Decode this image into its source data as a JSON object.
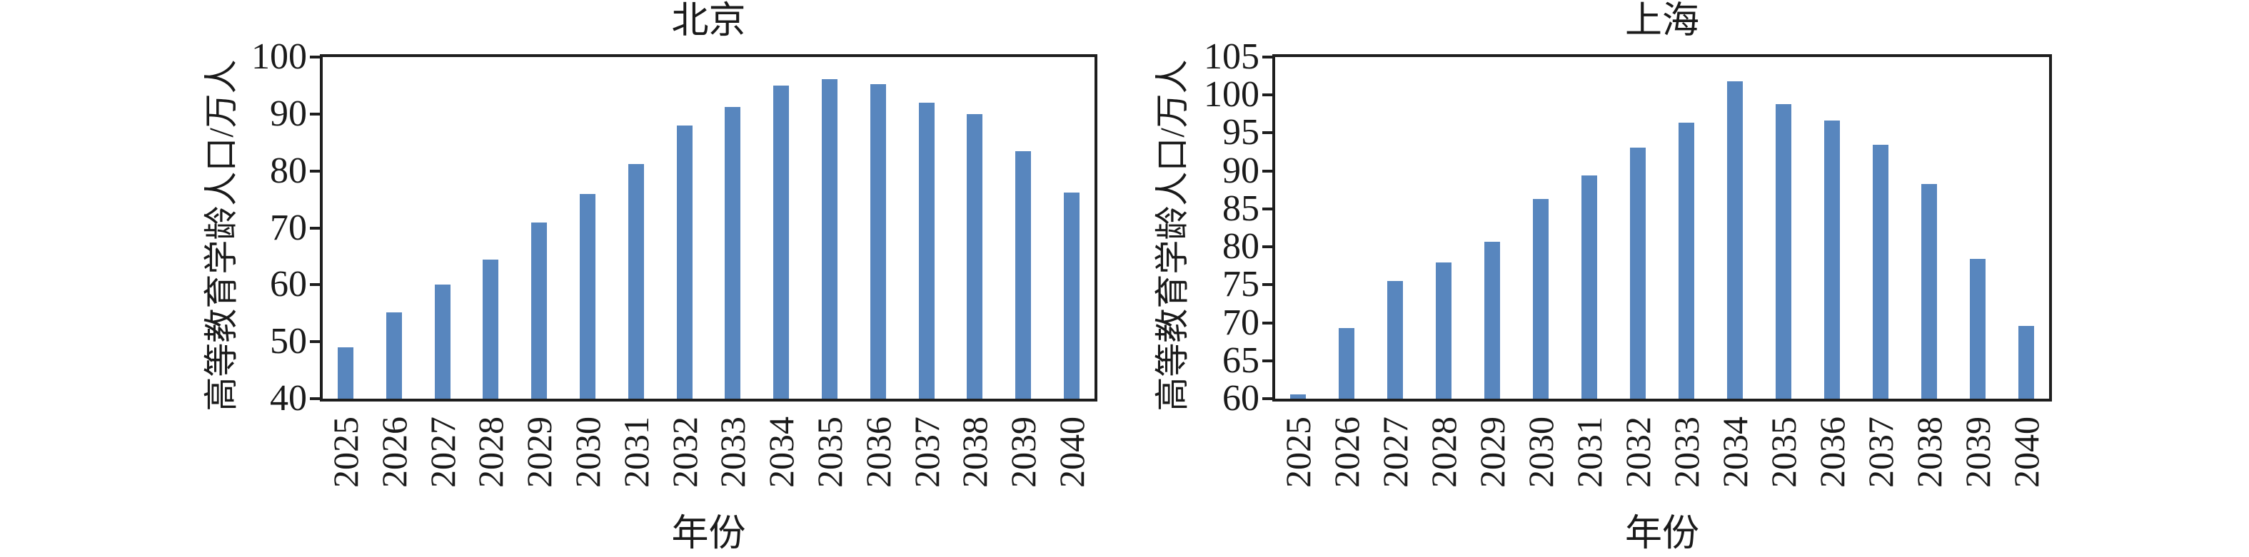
{
  "figure": {
    "background": "#ffffff",
    "axis_color": "#1e1e1e",
    "bar_color": "#5886BE"
  },
  "chart_data": [
    {
      "type": "bar",
      "title": "北京",
      "xlabel": "年份",
      "ylabel": "高等教育学龄人口/万人",
      "categories": [
        "2025",
        "2026",
        "2027",
        "2028",
        "2029",
        "2030",
        "2031",
        "2032",
        "2033",
        "2034",
        "2035",
        "2036",
        "2037",
        "2038",
        "2039",
        "2040"
      ],
      "values": [
        49.0,
        55.2,
        60.1,
        64.4,
        71.0,
        76.0,
        81.2,
        88.0,
        91.2,
        95.0,
        96.1,
        95.3,
        92.0,
        90.0,
        83.5,
        76.2
      ],
      "ylim": [
        40,
        100
      ],
      "yticks": [
        40,
        50,
        60,
        70,
        80,
        90,
        100
      ],
      "grid": false,
      "legend": null,
      "bar_color": "#5886BE"
    },
    {
      "type": "bar",
      "title": "上海",
      "xlabel": "年份",
      "ylabel": "高等教育学龄人口/万人",
      "categories": [
        "2025",
        "2026",
        "2027",
        "2028",
        "2029",
        "2030",
        "2031",
        "2032",
        "2033",
        "2034",
        "2035",
        "2036",
        "2037",
        "2038",
        "2039",
        "2040"
      ],
      "values": [
        60.6,
        69.3,
        75.5,
        77.9,
        80.7,
        86.3,
        89.4,
        93.1,
        96.4,
        101.8,
        98.8,
        96.6,
        93.4,
        88.3,
        78.4,
        69.6
      ],
      "ylim": [
        60,
        105
      ],
      "yticks": [
        60,
        65,
        70,
        75,
        80,
        85,
        90,
        95,
        100,
        105
      ],
      "grid": false,
      "legend": null,
      "bar_color": "#5886BE"
    }
  ]
}
